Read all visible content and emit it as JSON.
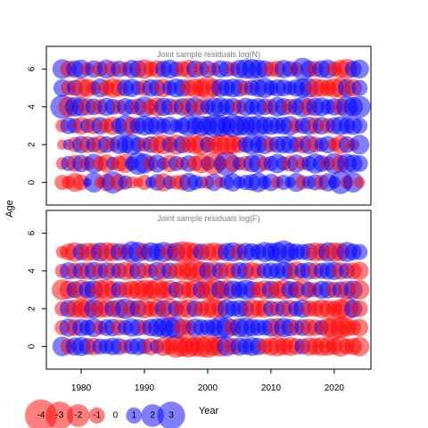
{
  "chart_data": {
    "type": "scatter",
    "ylabel": "Age",
    "xlabel": "Year",
    "x_ticks": [
      1980,
      1990,
      2000,
      2010,
      2020
    ],
    "y_ticks": [
      0,
      2,
      4,
      6
    ],
    "x_range": [
      1974.5,
      2025.8
    ],
    "years_start": 1977,
    "years_end": 2024,
    "ages": [
      0,
      1,
      2,
      3,
      4,
      5,
      6
    ],
    "colors": {
      "negative": "#ff0000",
      "positive": "#0000ff"
    },
    "panels": [
      {
        "title": "Joint sample residuals log(N)",
        "ylim": [
          -1.2,
          7.2
        ],
        "rows": [
          {
            "age": 0,
            "residuals": [
              -0.9,
              -0.7,
              -1.4,
              -1.0,
              0.3,
              1.6,
              -0.5,
              -1.2,
              1.9,
              -1.1,
              0.8,
              -0.6,
              -0.4,
              -0.9,
              0.5,
              1.1,
              -1.3,
              0.7,
              -0.8,
              -1.0,
              1.4,
              0.9,
              0.6,
              -0.7,
              1.2,
              -0.5,
              0.8,
              1.3,
              0.6,
              0.9,
              1.1,
              1.5,
              0.7,
              1.2,
              -0.6,
              0.9,
              0.5,
              1.4,
              -0.8,
              0.7,
              1.0,
              -0.9,
              1.3,
              0.6,
              2.1,
              -0.7,
              1.6,
              -0.5
            ]
          },
          {
            "age": 1,
            "residuals": [
              -0.6,
              0.9,
              -1.1,
              1.2,
              -0.8,
              1.5,
              -0.9,
              -1.3,
              0.7,
              -1.0,
              -1.4,
              0.8,
              2.0,
              1.6,
              -0.9,
              1.3,
              0.6,
              -1.2,
              0.9,
              -0.7,
              1.1,
              -0.9,
              -1.5,
              0.8,
              -2.0,
              -0.8,
              2.4,
              -1.1,
              0.7,
              -0.9,
              1.2,
              1.4,
              -0.8,
              0.9,
              1.5,
              0.8,
              -1.0,
              1.3,
              -0.7,
              0.9,
              1.6,
              1.1,
              -0.8,
              1.7,
              -1.2,
              1.5,
              1.3,
              1.1
            ]
          },
          {
            "age": 2,
            "residuals": [
              -0.4,
              0.5,
              -0.9,
              1.2,
              -1.1,
              0.9,
              -1.3,
              1.1,
              -0.8,
              1.4,
              1.2,
              1.7,
              0.9,
              -0.8,
              1.1,
              -1.3,
              -1.5,
              1.0,
              -1.6,
              1.2,
              -1.1,
              -1.4,
              -1.7,
              1.0,
              -1.2,
              -1.5,
              -1.8,
              -1.3,
              -1.1,
              1.0,
              1.6,
              1.2,
              1.4,
              -0.9,
              1.1,
              1.2,
              1.3,
              0.9,
              -1.2,
              1.4,
              -1.0,
              0.8,
              1.2,
              -0.7,
              -1.4,
              1.1,
              -0.6,
              1.5
            ]
          },
          {
            "age": 3,
            "residuals": [
              -0.7,
              1.1,
              0.9,
              -1.2,
              0.8,
              -1.1,
              1.2,
              -0.9,
              -1.3,
              1.0,
              1.8,
              -1.2,
              1.1,
              1.5,
              1.2,
              1.4,
              0.9,
              1.3,
              0.7,
              1.0,
              1.8,
              1.2,
              1.6,
              1.4,
              2.0,
              1.8,
              1.3,
              2.0,
              1.6,
              1.5,
              1.4,
              1.7,
              1.2,
              1.3,
              1.1,
              1.2,
              1.5,
              -0.8,
              1.0,
              1.3,
              -1.1,
              1.2,
              -0.9,
              1.1,
              1.4,
              1.1,
              1.3,
              1.0
            ]
          },
          {
            "age": 4,
            "residuals": [
              2.2,
              -1.6,
              1.5,
              1.4,
              -1.2,
              1.1,
              -0.9,
              1.3,
              1.0,
              -0.8,
              1.2,
              0.9,
              -1.1,
              1.7,
              -1.0,
              -1.4,
              1.3,
              1.1,
              -0.9,
              1.2,
              -1.3,
              1.5,
              -1.1,
              0.9,
              1.3,
              1.4,
              1.1,
              1.2,
              -0.8,
              1.3,
              1.0,
              1.2,
              1.1,
              -0.9,
              1.5,
              1.2,
              -1.0,
              1.1,
              1.6,
              -1.2,
              1.3,
              1.4,
              0.9,
              1.2,
              -1.1,
              1.8,
              1.5,
              1.9
            ]
          },
          {
            "age": 5,
            "residuals": [
              1.2,
              -0.9,
              1.0,
              -1.6,
              -1.3,
              -0.8,
              1.4,
              -1.0,
              -1.5,
              -1.2,
              1.1,
              1.3,
              0.8,
              -1.0,
              1.2,
              1.1,
              -1.3,
              0.9,
              1.4,
              1.2,
              -1.1,
              -1.4,
              -1.3,
              -2.1,
              -1.2,
              1.3,
              1.1,
              1.4,
              1.2,
              -0.9,
              1.0,
              1.3,
              1.6,
              0.9,
              1.2,
              1.1,
              0.8,
              1.2,
              1.4,
              1.5,
              -1.4,
              -1.2,
              -1.1,
              -1.5,
              -1.6,
              1.3,
              -1.2,
              1.0
            ]
          },
          {
            "age": 6,
            "residuals": [
              1.5,
              -1.1,
              1.2,
              1.4,
              -0.7,
              1.2,
              -0.9,
              1.4,
              -1.0,
              1.1,
              -0.8,
              1.3,
              1.2,
              -1.5,
              -0.9,
              -1.2,
              1.1,
              1.4,
              0.9,
              -1.0,
              -1.3,
              1.2,
              -0.9,
              1.1,
              -0.7,
              1.2,
              1.0,
              -0.8,
              1.3,
              1.5,
              1.6,
              1.4,
              1.2,
              -0.9,
              -1.1,
              1.3,
              1.0,
              -0.8,
              2.0,
              1.1,
              -1.0,
              1.2,
              1.4,
              -0.9,
              -1.3,
              -1.6,
              1.1,
              1.4
            ]
          }
        ]
      },
      {
        "title": "Joint sample residuals log(F)",
        "ylim": [
          -1.2,
          7.2
        ],
        "rows": [
          {
            "age": 0,
            "residuals": [
              1.5,
              -1.0,
              1.3,
              1.4,
              1.1,
              -1.2,
              1.0,
              0.9,
              1.2,
              1.1,
              -0.8,
              1.0,
              1.2,
              0.9,
              -1.2,
              0.8,
              -1.4,
              -1.1,
              -2.0,
              -1.6,
              -1.9,
              -1.5,
              -1.8,
              -2.0,
              -1.4,
              -1.6,
              1.5,
              -1.1,
              1.3,
              1.1,
              1.4,
              1.2,
              -1.0,
              -1.3,
              -1.5,
              -1.2,
              -1.4,
              -1.1,
              1.0,
              -1.3,
              -1.2,
              -1.4,
              -1.3,
              -1.1,
              -1.6,
              -1.0,
              -1.2,
              -1.5
            ]
          },
          {
            "age": 1,
            "residuals": [
              -0.9,
              1.3,
              -1.1,
              1.2,
              1.0,
              1.4,
              -0.8,
              1.1,
              1.2,
              -1.0,
              0.9,
              1.3,
              1.1,
              -0.9,
              1.2,
              1.4,
              1.6,
              1.8,
              1.9,
              -1.2,
              -1.0,
              1.3,
              1.1,
              1.0,
              1.2,
              1.9,
              1.7,
              -1.1,
              1.4,
              1.6,
              1.2,
              1.1,
              1.0,
              1.3,
              -1.4,
              1.5,
              1.2,
              -1.0,
              1.1,
              -1.2,
              -1.1,
              0.9,
              -1.6,
              -2.1,
              -1.8,
              -1.3,
              -1.0,
              -1.2
            ]
          },
          {
            "age": 2,
            "residuals": [
              -0.9,
              1.2,
              -1.3,
              -1.4,
              -1.6,
              1.5,
              -1.3,
              -1.2,
              1.1,
              -1.4,
              1.7,
              -1.1,
              1.2,
              -1.5,
              -1.0,
              -1.3,
              1.2,
              -1.6,
              1.0,
              -1.2,
              -1.4,
              1.1,
              -1.0,
              -1.3,
              -1.5,
              -1.2,
              1.4,
              1.0,
              1.2,
              1.1,
              -1.5,
              -1.1,
              -1.3,
              1.0,
              -0.9,
              1.1,
              -1.2,
              1.0,
              1.3,
              -1.1,
              -1.0,
              -1.4,
              -1.2,
              -1.0,
              -1.5,
              -2.0,
              1.3,
              -1.1
            ]
          },
          {
            "age": 3,
            "residuals": [
              -1.7,
              -1.3,
              1.1,
              -1.6,
              1.2,
              1.4,
              -1.5,
              -1.8,
              -1.2,
              1.1,
              -1.0,
              -1.3,
              -1.5,
              -1.6,
              -1.4,
              -1.9,
              -1.2,
              -1.5,
              1.0,
              -1.4,
              -1.1,
              -1.6,
              1.2,
              -1.7,
              -2.0,
              1.3,
              -1.5,
              1.4,
              1.1,
              1.6,
              1.2,
              -1.1,
              -1.4,
              1.3,
              -1.2,
              -1.6,
              1.2,
              1.1,
              -1.8,
              1.0,
              -0.9,
              1.3,
              1.2,
              -1.0,
              1.1,
              -1.3,
              1.4,
              -1.5
            ]
          },
          {
            "age": 4,
            "residuals": [
              -0.8,
              1.2,
              -1.0,
              1.1,
              -1.2,
              1.3,
              -1.0,
              1.2,
              -1.1,
              1.0,
              -1.3,
              -1.1,
              1.2,
              -1.0,
              -0.8,
              1.3,
              -1.2,
              1.1,
              -1.0,
              -1.3,
              -1.4,
              -1.9,
              -1.5,
              1.2,
              -1.3,
              1.1,
              -1.2,
              -1.0,
              1.2,
              1.1,
              -1.3,
              -0.9,
              1.0,
              1.1,
              1.0,
              1.3,
              1.1,
              -1.4,
              1.0,
              1.2,
              -1.1,
              1.0,
              1.2,
              1.3,
              -1.2,
              1.0,
              -1.1,
              -1.3
            ]
          },
          {
            "age": 5,
            "residuals": [
              -0.6,
              -1.1,
              -1.5,
              1.1,
              -1.3,
              -1.2,
              1.4,
              -1.5,
              -1.3,
              1.2,
              -1.0,
              1.8,
              1.6,
              -1.1,
              1.5,
              1.2,
              1.6,
              -1.2,
              1.4,
              -1.8,
              -1.6,
              -1.3,
              1.1,
              -1.2,
              -1.4,
              -1.1,
              1.3,
              1.5,
              -1.1,
              1.3,
              1.2,
              1.0,
              1.6,
              1.3,
              1.5,
              2.1,
              1.3,
              1.1,
              1.0,
              1.2,
              -1.4,
              -1.2,
              1.5,
              -1.5,
              -1.3,
              1.6,
              1.1,
              1.0
            ]
          }
        ]
      }
    ],
    "legend": {
      "values": [
        -4,
        -3,
        -2,
        -1,
        0,
        1,
        2,
        3
      ],
      "labels": [
        "-4",
        "-3",
        "-2",
        "-1",
        "0",
        "1",
        "2",
        "3"
      ]
    }
  }
}
